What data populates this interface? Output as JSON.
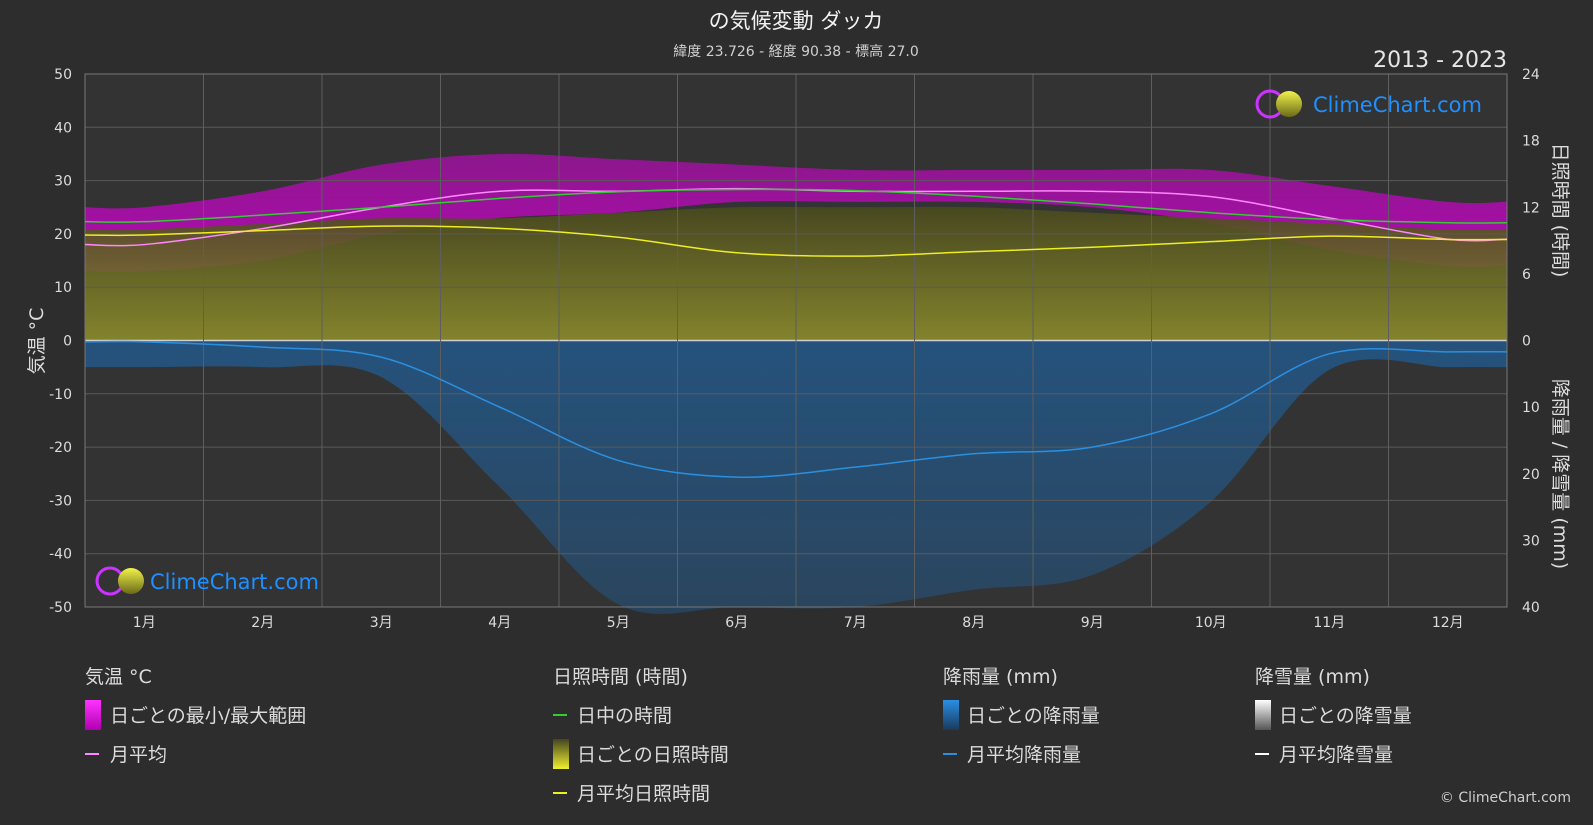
{
  "header": {
    "title": "の気候変動 ダッカ",
    "subtitle": "緯度 23.726 - 経度 90.38 - 標高 27.0",
    "year_range": "2013 - 2023",
    "brand": "ClimeChart.com",
    "copyright": "© ClimeChart.com"
  },
  "colors": {
    "background": "#2d2d2d",
    "temp_range": "#d400d4",
    "temp_avg": "#ff88ff",
    "daylight": "#33cc33",
    "sunshine_bar": "#8b8b2a",
    "sunshine_avg": "#eeee22",
    "rain_bar": "#1f5f9a",
    "rain_avg": "#2b8fe0",
    "snow_avg": "#ffffff",
    "brand_text": "#1e90ff"
  },
  "legend": {
    "temperature": {
      "title": "気温 °C",
      "range_label": "日ごとの最小/最大範囲",
      "avg_label": "月平均"
    },
    "sunshine": {
      "title": "日照時間 (時間)",
      "daylight_label": "日中の時間",
      "daily_label": "日ごとの日照時間",
      "avg_label": "月平均日照時間"
    },
    "rain": {
      "title": "降雨量 (mm)",
      "daily_label": "日ごとの降雨量",
      "avg_label": "月平均降雨量"
    },
    "snow": {
      "title": "降雪量 (mm)",
      "daily_label": "日ごとの降雪量",
      "avg_label": "月平均降雪量"
    }
  },
  "chart_data": {
    "type": "area",
    "title": "の気候変動 ダッカ",
    "subtitle": "緯度 23.726 - 経度 90.38 - 標高 27.0",
    "ylabel_left": "気温 °C",
    "ylabel_right_top": "日照時間 (時間)",
    "ylabel_right_bottom": "降雨量 / 降雪量 (mm)",
    "ylim_left": [
      -50,
      50
    ],
    "yticks_left": [
      "50",
      "40",
      "30",
      "20",
      "10",
      "0",
      "-10",
      "-20",
      "-30",
      "-40",
      "-50"
    ],
    "yticks_right_top": [
      "24",
      "18",
      "12",
      "6",
      "0"
    ],
    "yticks_right_bottom": [
      "10",
      "20",
      "30",
      "40"
    ],
    "ylim_sunshine_hours": [
      0,
      24
    ],
    "ylim_precip_mm": [
      0,
      40
    ],
    "grid": true,
    "categories": [
      "1月",
      "2月",
      "3月",
      "4月",
      "5月",
      "6月",
      "7月",
      "8月",
      "9月",
      "10月",
      "11月",
      "12月"
    ],
    "series": [
      {
        "name": "月平均",
        "values": [
          18,
          21,
          25,
          28,
          28,
          28.5,
          28,
          28,
          28,
          27,
          23,
          19
        ]
      },
      {
        "name": "日中の時間",
        "values": [
          10.7,
          11.3,
          12.0,
          12.8,
          13.4,
          13.6,
          13.5,
          13.0,
          12.3,
          11.5,
          10.9,
          10.6
        ]
      },
      {
        "name": "月平均日照時間",
        "values": [
          9.5,
          9.9,
          10.3,
          10.1,
          9.3,
          7.9,
          7.6,
          8.0,
          8.4,
          8.9,
          9.4,
          9.1
        ]
      },
      {
        "name": "月平均降雨量",
        "values": [
          0.2,
          1.0,
          2.5,
          10.0,
          18.0,
          20.5,
          19.0,
          17.0,
          16.0,
          11.0,
          2.0,
          1.7
        ]
      },
      {
        "name": "月平均降雪量",
        "values": [
          0,
          0,
          0,
          0,
          0,
          0,
          0,
          0,
          0,
          0,
          0,
          0
        ]
      }
    ],
    "temp_range_approx": {
      "min": [
        13,
        15,
        20,
        23,
        24,
        26,
        26,
        26,
        25,
        22,
        17,
        14
      ],
      "max": [
        25,
        28,
        33,
        35,
        34,
        33,
        32,
        32,
        32,
        32,
        29,
        26
      ]
    },
    "daily_sunshine_max_approx": [
      10,
      10.5,
      11,
      11,
      11.5,
      12,
      12,
      12,
      11.5,
      11,
      10.5,
      10
    ]
  }
}
